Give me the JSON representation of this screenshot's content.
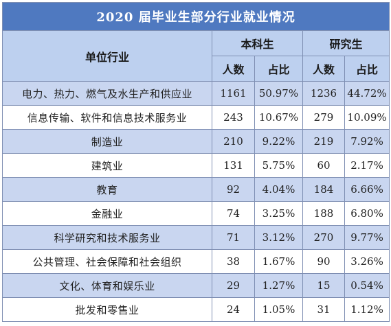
{
  "title": "2020 届毕业生部分行业就业情况",
  "headers": {
    "industry": "单位行业",
    "undergrad": "本科生",
    "graduate": "研究生",
    "count": "人数",
    "ratio": "占比"
  },
  "rows": [
    {
      "industry": "电力、热力、燃气及水生产和供应业",
      "ug_count": "1161",
      "ug_ratio": "50.97%",
      "gr_count": "1236",
      "gr_ratio": "44.72%"
    },
    {
      "industry": "信息传输、软件和信息技术服务业",
      "ug_count": "243",
      "ug_ratio": "10.67%",
      "gr_count": "279",
      "gr_ratio": "10.09%"
    },
    {
      "industry": "制造业",
      "ug_count": "210",
      "ug_ratio": "9.22%",
      "gr_count": "219",
      "gr_ratio": "7.92%"
    },
    {
      "industry": "建筑业",
      "ug_count": "131",
      "ug_ratio": "5.75%",
      "gr_count": "60",
      "gr_ratio": "2.17%"
    },
    {
      "industry": "教育",
      "ug_count": "92",
      "ug_ratio": "4.04%",
      "gr_count": "184",
      "gr_ratio": "6.66%"
    },
    {
      "industry": "金融业",
      "ug_count": "74",
      "ug_ratio": "3.25%",
      "gr_count": "188",
      "gr_ratio": "6.80%"
    },
    {
      "industry": "科学研究和技术服务业",
      "ug_count": "71",
      "ug_ratio": "3.12%",
      "gr_count": "270",
      "gr_ratio": "9.77%"
    },
    {
      "industry": "公共管理、社会保障和社会组织",
      "ug_count": "38",
      "ug_ratio": "1.67%",
      "gr_count": "90",
      "gr_ratio": "3.26%"
    },
    {
      "industry": "文化、体育和娱乐业",
      "ug_count": "29",
      "ug_ratio": "1.27%",
      "gr_count": "15",
      "gr_ratio": "0.54%"
    },
    {
      "industry": "批发和零售业",
      "ug_count": "24",
      "ug_ratio": "1.05%",
      "gr_count": "31",
      "gr_ratio": "1.12%"
    }
  ]
}
